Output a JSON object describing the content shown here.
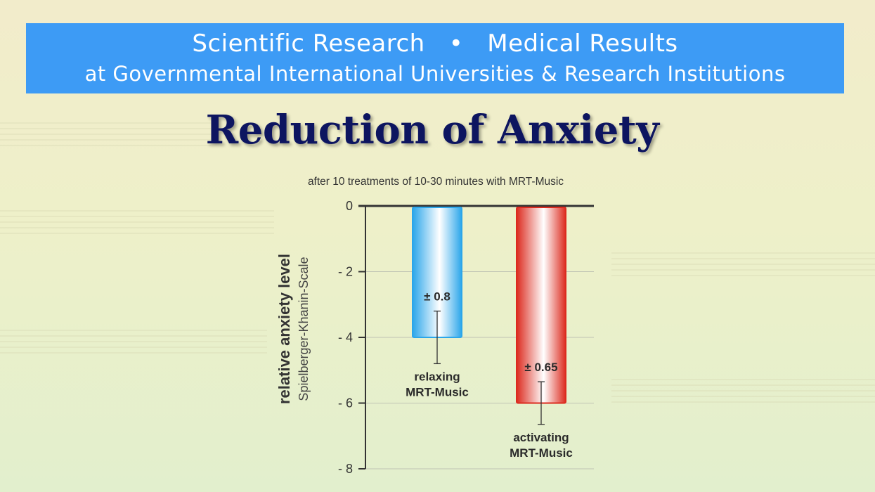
{
  "banner": {
    "line1_left": "Scientific Research",
    "separator": "•",
    "line1_right": "Medical Results",
    "line2": "at Governmental International Universities & Research Institutions",
    "bg_color": "#3d9bf5"
  },
  "page_title": "Reduction of Anxiety",
  "chart_data": {
    "type": "bar",
    "subtitle": "after 10 treatments of 10-30 minutes with MRT-Music",
    "ylabel": "relative anxiety level",
    "ylabel_sub": "Spielberger-Khanin-Scale",
    "ylim": [
      -8,
      0
    ],
    "yticks": [
      0,
      -2,
      -4,
      -6,
      -8
    ],
    "ytick_labels": [
      "0",
      "- 2",
      "- 4",
      "- 6",
      "- 8"
    ],
    "grid": true,
    "categories": [
      [
        "relaxing",
        "MRT-Music"
      ],
      [
        "activating",
        "MRT-Music"
      ]
    ],
    "values": [
      -4,
      -6
    ],
    "errors": [
      0.8,
      0.65
    ],
    "error_labels": [
      "± 0.8",
      "± 0.65"
    ],
    "colors": [
      "#2ba6ea",
      "#dc2b1f"
    ]
  }
}
